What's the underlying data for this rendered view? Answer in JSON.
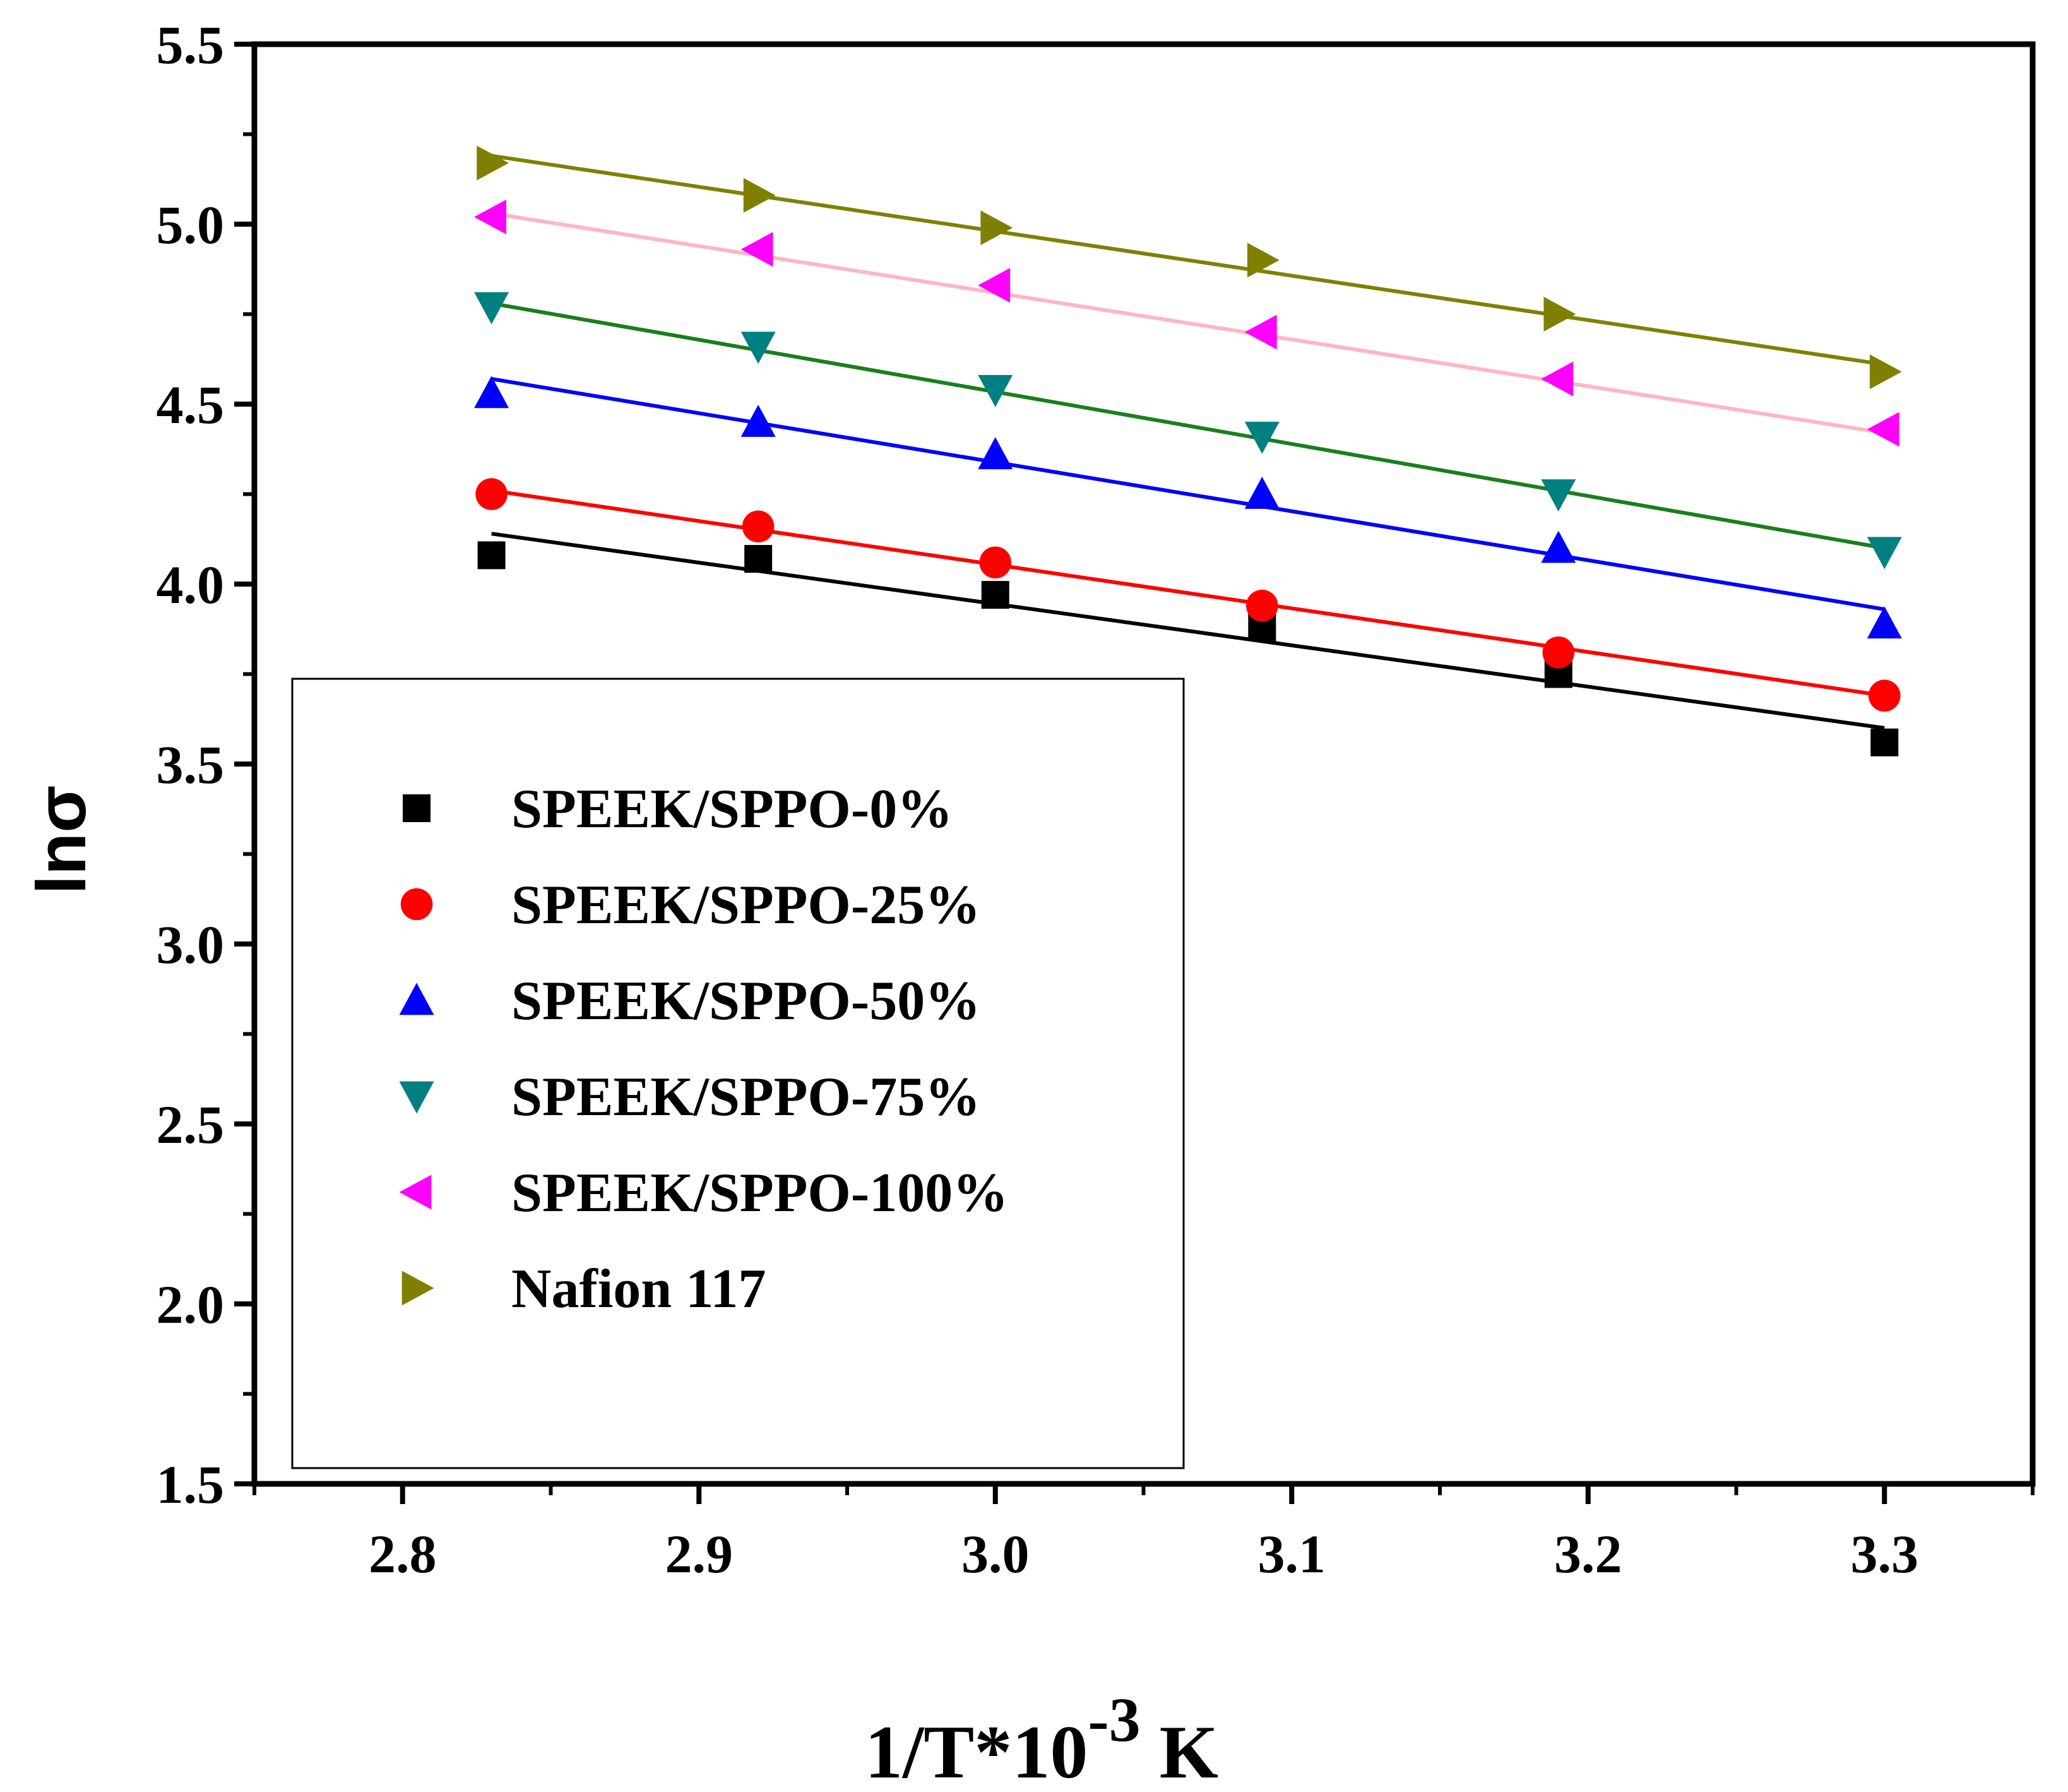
{
  "chart_data": {
    "type": "scatter",
    "title": "",
    "xlabel": "1/T*10",
    "xlabel_exponent": "-3",
    "xlabel_unit": " K",
    "ylabel": "lnσ",
    "xlim": [
      2.75,
      3.35
    ],
    "ylim": [
      1.5,
      5.5
    ],
    "xticks": [
      2.8,
      2.9,
      3.0,
      3.1,
      3.2,
      3.3
    ],
    "xtick_labels": [
      "2.8",
      "2.9",
      "3.0",
      "3.1",
      "3.2",
      "3.3"
    ],
    "yticks": [
      1.5,
      2.0,
      2.5,
      3.0,
      3.5,
      4.0,
      4.5,
      5.0,
      5.5
    ],
    "ytick_labels": [
      "1.5",
      "2.0",
      "2.5",
      "3.0",
      "3.5",
      "4.0",
      "4.5",
      "5.0",
      "5.5"
    ],
    "x": [
      2.83,
      2.92,
      3.0,
      3.09,
      3.19,
      3.3
    ],
    "legend_position": "lower-left",
    "series": [
      {
        "name": "SPEEK/SPPO-0%",
        "marker": "square",
        "color": "#000000",
        "line_color": "#000000",
        "values": [
          4.08,
          4.07,
          3.97,
          3.88,
          3.75,
          3.56
        ],
        "fit": [
          4.14,
          3.6
        ]
      },
      {
        "name": "SPEEK/SPPO-25%",
        "marker": "circle",
        "color": "#ff0000",
        "line_color": "#ff0000",
        "values": [
          4.25,
          4.16,
          4.06,
          3.94,
          3.81,
          3.69
        ],
        "fit": [
          4.26,
          3.69
        ]
      },
      {
        "name": "SPEEK/SPPO-50%",
        "marker": "triangle-up",
        "color": "#0000ff",
        "line_color": "#0000ff",
        "values": [
          4.53,
          4.45,
          4.36,
          4.25,
          4.1,
          3.89
        ],
        "fit": [
          4.57,
          3.93
        ]
      },
      {
        "name": "SPEEK/SPPO-75%",
        "marker": "triangle-down",
        "color": "#008080",
        "line_color": "#1a7f1a",
        "values": [
          4.77,
          4.66,
          4.54,
          4.41,
          4.25,
          4.09
        ],
        "fit": [
          4.78,
          4.1
        ]
      },
      {
        "name": "SPEEK/SPPO-100%",
        "marker": "triangle-left",
        "color": "#ff00ff",
        "line_color": "#ffb6c1",
        "values": [
          5.02,
          4.93,
          4.83,
          4.7,
          4.57,
          4.43
        ],
        "fit": [
          5.03,
          4.42
        ]
      },
      {
        "name": "Nafion 117",
        "marker": "triangle-right",
        "color": "#808000",
        "line_color": "#808000",
        "values": [
          5.17,
          5.08,
          4.99,
          4.9,
          4.75,
          4.59
        ],
        "fit": [
          5.19,
          4.61
        ]
      }
    ]
  }
}
